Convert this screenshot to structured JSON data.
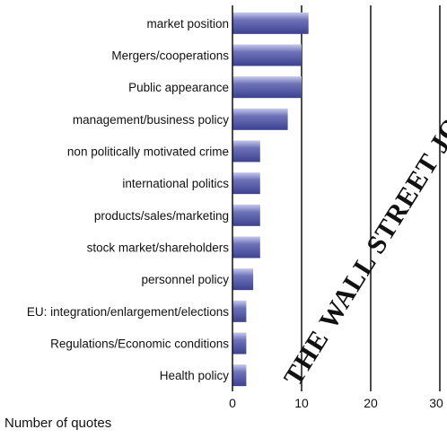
{
  "chart_data": {
    "type": "bar",
    "orientation": "horizontal",
    "categories": [
      "market position",
      "Mergers/cooperations",
      "Public appearance",
      "management/business policy",
      "non politically motivated crime",
      "international politics",
      "products/sales/marketing",
      "stock market/shareholders",
      "personnel policy",
      "EU: integration/enlargement/elections",
      "Regulations/Economic conditions",
      "Health policy"
    ],
    "values": [
      11,
      10,
      10,
      8,
      4,
      4,
      4,
      4,
      3,
      2,
      2,
      2
    ],
    "xlabel": "Number of quotes",
    "xlim": [
      0,
      30
    ],
    "xticks": [
      "0",
      "10",
      "20",
      "30"
    ],
    "grid": true,
    "bar_color": "#5a5fa8",
    "bar_highlight": "#c7c9ea"
  },
  "watermark": "THE WALL STREET JOURNAL"
}
